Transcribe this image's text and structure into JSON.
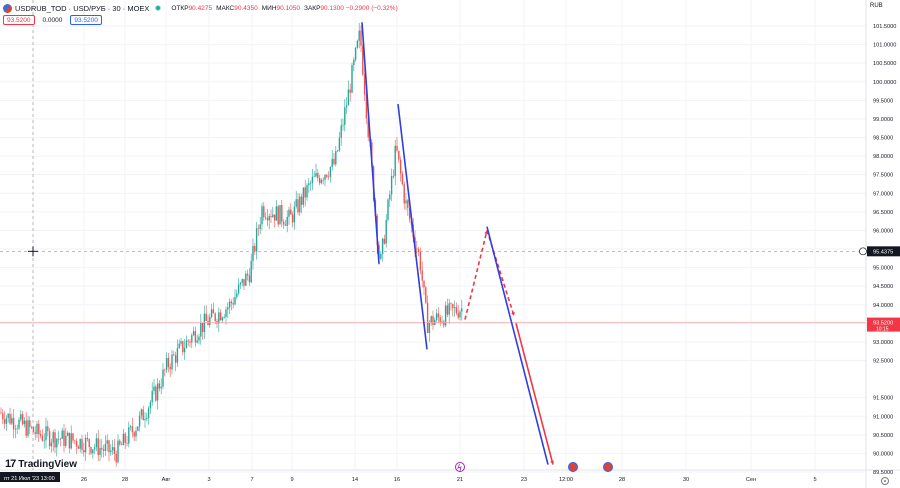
{
  "header": {
    "symbol_title": "USDRUB_TOD · USD/РУБ · 30 · MOEX",
    "ohlc": [
      {
        "key": "ОТКР",
        "value": "90.4275"
      },
      {
        "key": "МАКС",
        "value": "90.4350"
      },
      {
        "key": "МИН",
        "value": "90.1050"
      },
      {
        "key": "ЗАКР",
        "value": "90.1300 −0.2900 (−0.32%)"
      }
    ],
    "sell_price": "93.5200",
    "spread": "0.0000",
    "buy_price": "93.5200"
  },
  "currency_label": "RUB",
  "logo_text": "TradingView",
  "crosshair_date": "пт 21 Июл '23   13:00",
  "crosshair_price": "95.4375",
  "last_price": "93.5200",
  "last_price_timer": "10:15",
  "icons": {
    "symbol": "currency-pair-icon",
    "live": "market-open-dot-icon",
    "settings": "settings-gear-icon",
    "event_1": "dividend-event-icon",
    "event_2": "us-flag-event-icon",
    "event_3": "us-flag-event-icon"
  },
  "colors": {
    "up": "#26a69a",
    "down": "#ef5350",
    "blue_line": "#2f3fdc",
    "red_line": "#f23645"
  },
  "chart_data": {
    "type": "candlestick",
    "price_range": [
      89.5,
      101.8
    ],
    "y_ticks": [
      "101.5000",
      "101.0000",
      "100.5000",
      "100.0000",
      "99.5000",
      "99.0000",
      "98.5000",
      "98.0000",
      "97.5000",
      "97.0000",
      "96.5000",
      "96.0000",
      "95.5000",
      "95.0000",
      "94.5000",
      "94.0000",
      "93.5000",
      "93.0000",
      "92.5000",
      "91.5000",
      "91.0000",
      "90.5000",
      "90.0000",
      "89.5000"
    ],
    "x_ticks": [
      "26",
      "28",
      "Авг",
      "3",
      "7",
      "9",
      "14",
      "16",
      "21",
      "23",
      "12:00",
      "28",
      "30",
      "Сен",
      "5"
    ],
    "close_path": [
      [
        "Jul 21",
        91.1
      ],
      [
        "Jul 24",
        90.5
      ],
      [
        "Jul 26",
        90.3
      ],
      [
        "Jul 28",
        90.0
      ],
      [
        "Jul 31",
        90.9
      ],
      [
        "Aug 1",
        91.6
      ],
      [
        "Aug 2",
        92.4
      ],
      [
        "Aug 3",
        93.4
      ],
      [
        "Aug 4",
        94.0
      ],
      [
        "Aug 7",
        94.9
      ],
      [
        "Aug 8",
        96.6
      ],
      [
        "Aug 9",
        96.3
      ],
      [
        "Aug 10",
        97.3
      ],
      [
        "Aug 11",
        97.8
      ],
      [
        "Aug 14",
        101.3
      ],
      [
        "Aug 15",
        95.0
      ],
      [
        "Aug 16",
        98.2
      ],
      [
        "Aug 17",
        96.8
      ],
      [
        "Aug 18",
        95.2
      ],
      [
        "Aug 21",
        93.5
      ],
      [
        "Aug 22",
        93.9
      ]
    ],
    "drawings": [
      {
        "color": "blue",
        "style": "solid",
        "from": [
          "Aug 14",
          101.6
        ],
        "to": [
          "Aug 15",
          95.1
        ]
      },
      {
        "color": "blue",
        "style": "solid",
        "from": [
          "Aug 16",
          99.4
        ],
        "to": [
          "Aug 18",
          92.8
        ]
      },
      {
        "color": "red",
        "style": "dashed",
        "from": [
          "Aug 21",
          93.6
        ],
        "to": [
          "Aug 22",
          96.0
        ]
      },
      {
        "color": "red",
        "style": "dashed",
        "from": [
          "Aug 22",
          96.0
        ],
        "to": [
          "Aug 23",
          93.7
        ]
      },
      {
        "color": "blue",
        "style": "solid",
        "from": [
          "Aug 22",
          96.1
        ],
        "to": [
          "Aug 25",
          89.7
        ]
      },
      {
        "color": "red",
        "style": "solid",
        "from": [
          "Aug 23",
          93.5
        ],
        "to": [
          "Aug 25",
          89.7
        ]
      }
    ]
  }
}
